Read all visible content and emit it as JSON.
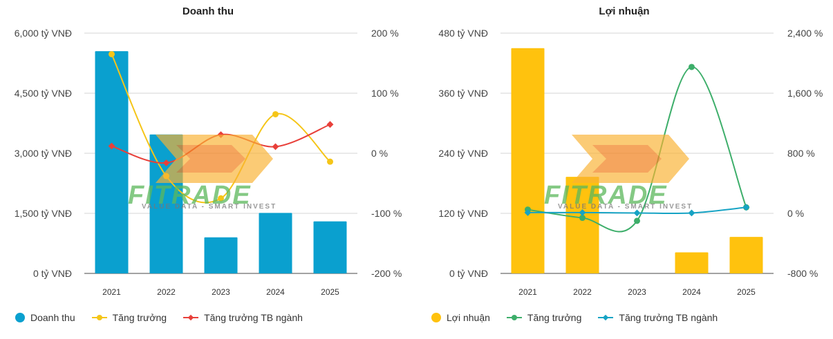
{
  "watermark": {
    "brand": "FITRADE",
    "tagline": "VALUE DATA - SMART INVEST"
  },
  "chart_data": [
    {
      "type": "bar",
      "title": "Doanh thu",
      "categories": [
        "2021",
        "2022",
        "2023",
        "2024",
        "2025"
      ],
      "left_axis": {
        "ticks": [
          "6,000 tỷ VNĐ",
          "4,500 tỷ VNĐ",
          "3,000 tỷ VNĐ",
          "1,500 tỷ VNĐ",
          "0 tỷ VNĐ"
        ],
        "min": 0,
        "max": 6000
      },
      "right_axis": {
        "ticks": [
          "200 %",
          "100 %",
          "0 %",
          "-100 %",
          "-200 %"
        ],
        "min": -200,
        "max": 200
      },
      "bar_color": "#0aa0cf",
      "bars": {
        "name": "Doanh thu",
        "values": [
          5550,
          3470,
          900,
          1510,
          1300
        ]
      },
      "lines": [
        {
          "name": "Tăng trưởng",
          "color": "#f5c518",
          "marker": "dot",
          "values": [
            165,
            -38,
            -75,
            65,
            -14
          ]
        },
        {
          "name": "Tăng trưởng TB ngành",
          "color": "#e8403a",
          "marker": "diamond",
          "values": [
            12,
            -16,
            31,
            11,
            48
          ]
        }
      ],
      "legend": [
        "Doanh thu",
        "Tăng trưởng",
        "Tăng trưởng TB ngành"
      ]
    },
    {
      "type": "bar",
      "title": "Lợi nhuận",
      "categories": [
        "2021",
        "2022",
        "2023",
        "2024",
        "2025"
      ],
      "left_axis": {
        "ticks": [
          "480 tỷ VNĐ",
          "360 tỷ VNĐ",
          "240 tỷ VNĐ",
          "120 tỷ VNĐ",
          "0 tỷ VNĐ"
        ],
        "min": 0,
        "max": 480
      },
      "right_axis": {
        "ticks": [
          "2,400 %",
          "1,600 %",
          "800 %",
          "0 %",
          "-800 %"
        ],
        "min": -800,
        "max": 2400
      },
      "bar_color": "#ffc20e",
      "bars": {
        "name": "Lợi nhuận",
        "values": [
          450,
          193,
          0,
          42,
          73
        ]
      },
      "lines": [
        {
          "name": "Tăng trưởng",
          "color": "#3dae6a",
          "marker": "dot",
          "values": [
            50,
            -60,
            -100,
            1950,
            80
          ]
        },
        {
          "name": "Tăng trưởng TB ngành",
          "color": "#16a3c4",
          "marker": "diamond",
          "values": [
            10,
            10,
            5,
            5,
            80
          ]
        }
      ],
      "legend": [
        "Lợi nhuận",
        "Tăng trưởng",
        "Tăng trưởng TB ngành"
      ]
    }
  ]
}
